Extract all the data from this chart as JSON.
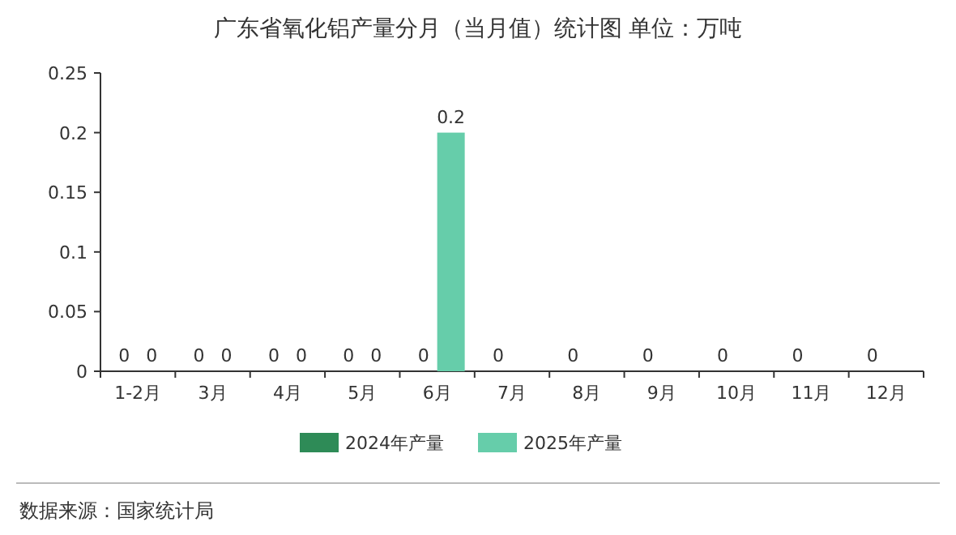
{
  "chart_data": {
    "type": "bar",
    "title": "广东省氧化铝产量分月（当月值）统计图 单位：万吨",
    "categories": [
      "1-2月",
      "3月",
      "4月",
      "5月",
      "6月",
      "7月",
      "8月",
      "9月",
      "10月",
      "11月",
      "12月"
    ],
    "series": [
      {
        "name": "2024年产量",
        "color": "#2e8b57",
        "values": [
          0,
          0,
          0,
          0,
          0,
          0,
          0,
          0,
          0,
          0,
          0
        ]
      },
      {
        "name": "2025年产量",
        "color": "#66cdaa",
        "values": [
          0,
          0,
          0,
          0,
          0.2,
          null,
          null,
          null,
          null,
          null,
          null
        ]
      }
    ],
    "ylim": [
      0,
      0.25
    ],
    "yticks": [
      0,
      0.05,
      0.1,
      0.15,
      0.2,
      0.25
    ],
    "data_labels": true,
    "legend": "bottom",
    "annotations": [
      "数据来源：国家统计局"
    ]
  }
}
